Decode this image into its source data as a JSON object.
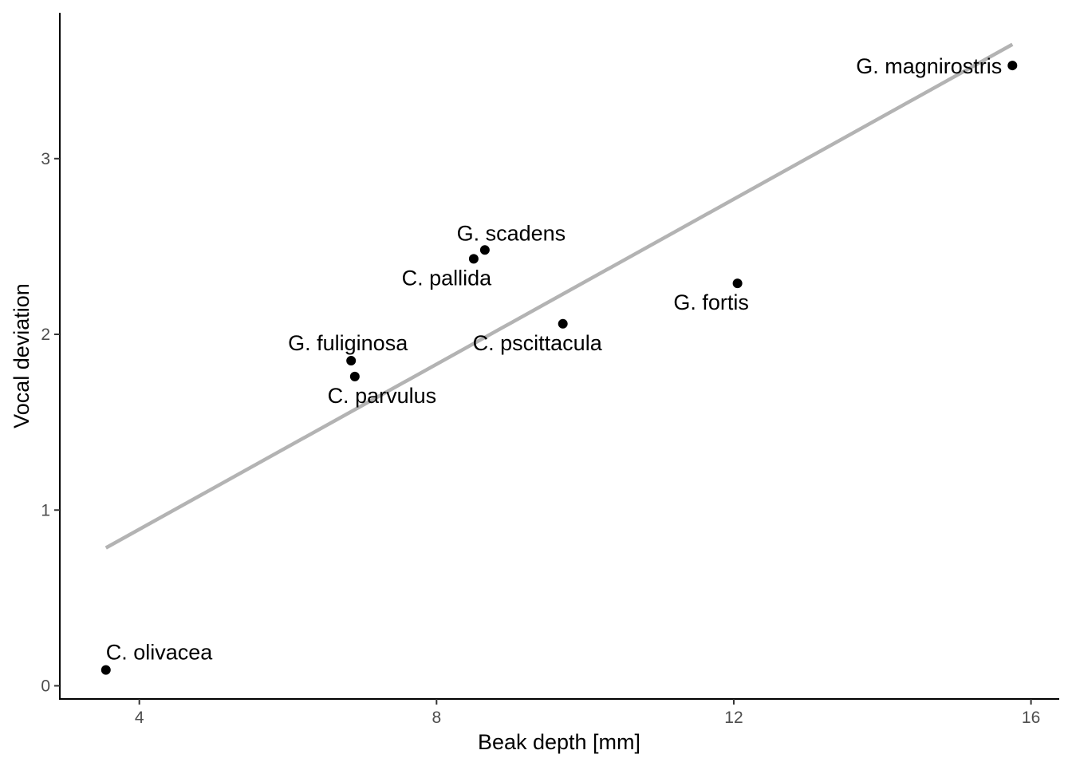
{
  "chart_data": {
    "type": "scatter",
    "title": "",
    "xlabel": "Beak depth [mm]",
    "ylabel": "Vocal deviation",
    "xlim": [
      2.93,
      16.38
    ],
    "ylim": [
      -0.075,
      3.83
    ],
    "xticks": [
      4,
      8,
      12,
      16
    ],
    "xtick_labels": [
      "4",
      "8",
      "12",
      "16"
    ],
    "yticks": [
      0,
      1,
      2,
      3
    ],
    "ytick_labels": [
      "0",
      "1",
      "2",
      "3"
    ],
    "grid": false,
    "legend": "none",
    "points": [
      {
        "label": "C. olivacea",
        "x": 3.55,
        "y": 0.09
      },
      {
        "label": "G. fuliginosa",
        "x": 6.85,
        "y": 1.85
      },
      {
        "label": "C. parvulus",
        "x": 6.9,
        "y": 1.76
      },
      {
        "label": "C. pallida",
        "x": 8.5,
        "y": 2.43
      },
      {
        "label": "G. scadens",
        "x": 8.65,
        "y": 2.48
      },
      {
        "label": "C. pscittacula",
        "x": 9.7,
        "y": 2.06
      },
      {
        "label": "G. fortis",
        "x": 12.05,
        "y": 2.29
      },
      {
        "label": "G. magnirostris",
        "x": 15.75,
        "y": 3.53
      }
    ],
    "fit_line": {
      "x": [
        3.55,
        15.75
      ],
      "y": [
        0.785,
        3.65
      ]
    },
    "colors": {
      "points": "#000000",
      "fit_line": "#b3b3b3",
      "axis": "#000000",
      "tick_labels": "#4d4d4d"
    }
  }
}
